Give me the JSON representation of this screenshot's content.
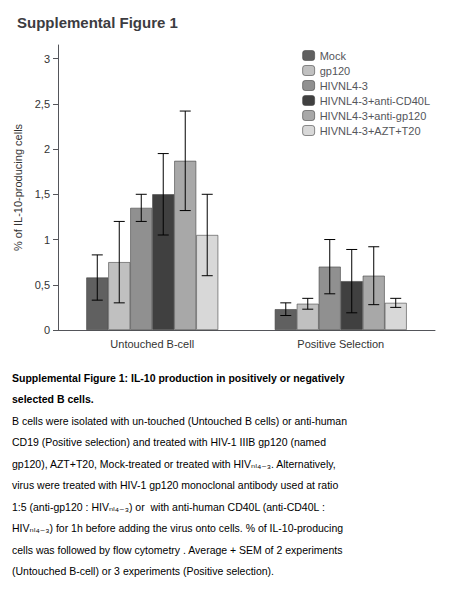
{
  "chart_data": {
    "type": "bar",
    "title": "Supplemental Figure 1",
    "ylabel": "% of IL-10-producing cells",
    "categories": [
      "Untouched B-cell",
      "Positive Selection"
    ],
    "series": [
      {
        "name": "Mock",
        "color": "#606060",
        "values": [
          0.58,
          0.23
        ],
        "errors": [
          0.25,
          0.07
        ]
      },
      {
        "name": "gp120",
        "color": "#c0c0c0",
        "values": [
          0.75,
          0.29
        ],
        "errors": [
          0.45,
          0.06
        ]
      },
      {
        "name": "HIVNL4-3",
        "color": "#909090",
        "values": [
          1.35,
          0.7
        ],
        "errors": [
          0.15,
          0.3
        ]
      },
      {
        "name": "HIVNL4-3+anti-CD40L",
        "color": "#404040",
        "values": [
          1.5,
          0.54
        ],
        "errors": [
          0.45,
          0.35
        ]
      },
      {
        "name": "HIVNL4-3+anti-gp120",
        "color": "#a8a8a8",
        "values": [
          1.87,
          0.6
        ],
        "errors": [
          0.55,
          0.32
        ]
      },
      {
        "name": "HIVNL4-3+AZT+T20",
        "color": "#d8d8d8",
        "values": [
          1.05,
          0.3
        ],
        "errors": [
          0.45,
          0.05
        ]
      }
    ],
    "ylim": [
      0,
      3.15
    ],
    "yticks": [
      0,
      {
        "value": 0.5,
        "label": "0,5"
      },
      1,
      {
        "value": 1.5,
        "label": "1,5"
      },
      2,
      {
        "value": 2.5,
        "label": "2,5"
      },
      3
    ],
    "grid": false,
    "legend": "upper right",
    "subtitle": [
      "Supplemental Figure 1: IL-10 production in positively or negatively",
      "selected B cells."
    ],
    "annotations": [
      "B cells were isolated with un-touched (Untouched B cells) or anti-human",
      "CD19 (Positive selection) and treated with HIV-1 IIIB gp120 (named",
      "gp120), AZT+T20, Mock-treated or treated with HIVₙₗ₄₋₃. Alternatively,",
      "virus were treated with HIV-1 gp120 monoclonal antibody used at ratio",
      "1:5 (anti-gp120 : HIVₙₗ₄₋₃) or  with anti-human CD40L (anti-CD40L :",
      "HIVₙₗ₄₋₃) for 1h before adding the virus onto cells. % of IL-10-producing",
      "cells was followed by flow cytometry . Average + SEM of 2 experiments",
      "(Untouched B-cell) or 3 experiments (Positive selection)."
    ]
  }
}
